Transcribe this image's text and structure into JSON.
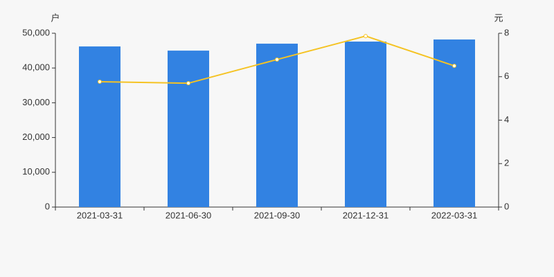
{
  "chart_data": {
    "type": "bar-line",
    "y_label": "户",
    "y2_label": "元",
    "categories": [
      "2021-03-31",
      "2021-06-30",
      "2021-09-30",
      "2021-12-31",
      "2022-03-31"
    ],
    "series": [
      {
        "color": "#3282e2",
        "values": [
          46200,
          45000,
          47000,
          47600,
          48200
        ]
      },
      {
        "color": "#f5c323",
        "values": [
          5.77,
          5.7,
          6.79,
          7.87,
          6.5
        ],
        "axis": "y2"
      }
    ],
    "ylim": [
      0,
      50000
    ],
    "yticks": [
      0,
      {
        "value": 10000,
        "label": "10,000"
      },
      {
        "value": 20000,
        "label": "20,000"
      },
      {
        "value": 30000,
        "label": "30,000"
      },
      {
        "value": 40000,
        "label": "40,000"
      },
      {
        "value": 50000,
        "label": "50,000"
      }
    ],
    "y2lim": [
      0,
      8
    ],
    "y2ticks": [
      0,
      2,
      4,
      6,
      8
    ]
  }
}
